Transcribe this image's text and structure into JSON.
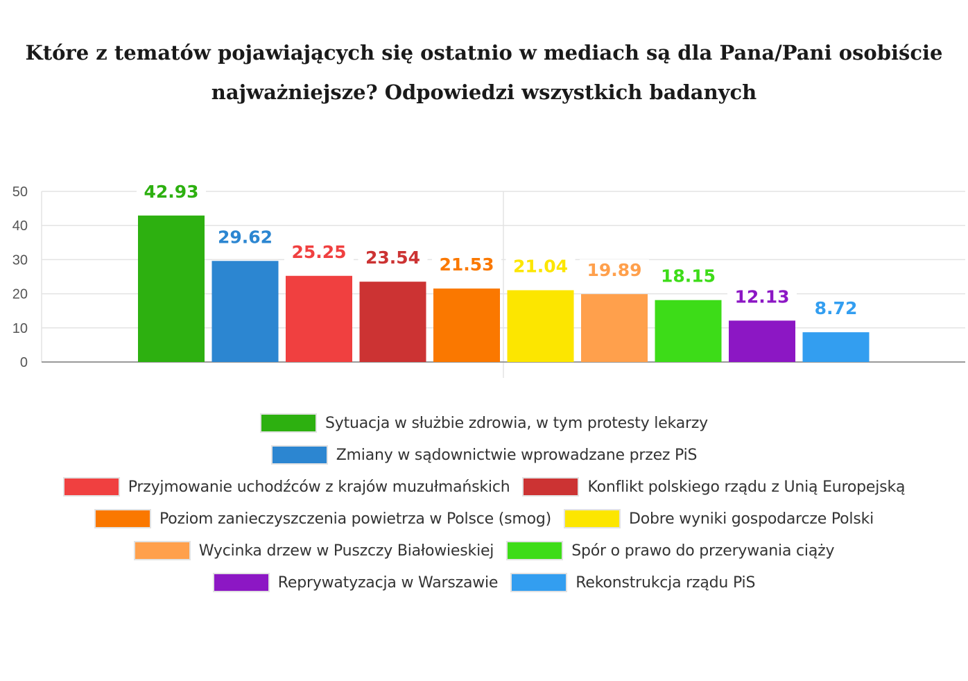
{
  "chart_data": {
    "type": "bar",
    "title_lines": [
      "Które z tematów pojawiających się ostatnio w mediach są dla Pana/Pani osobiście",
      "najważniejsze? Odpowiedzi wszystkich badanych"
    ],
    "ylim": [
      0,
      50
    ],
    "yticks": [
      "0",
      "10",
      "20",
      "30",
      "40",
      "50"
    ],
    "grid": true,
    "legend_position": "bottom",
    "series": [
      {
        "name": "Sytuacja w służbie zdrowia, w tym protesty lekarzy",
        "value": 42.93,
        "label": "42.93",
        "color": "#2db010"
      },
      {
        "name": "Zmiany w sądownictwie wprowadzane przez PiS",
        "value": 29.62,
        "label": "29.62",
        "color": "#2c86d1"
      },
      {
        "name": "Przyjmowanie uchodźców z krajów muzułmańskich",
        "value": 25.25,
        "label": "25.25",
        "color": "#f04040"
      },
      {
        "name": "Konflikt polskiego rządu z Unią Europejską",
        "value": 23.54,
        "label": "23.54",
        "color": "#cc3333"
      },
      {
        "name": "Poziom zanieczyszczenia powietrza w Polsce (smog)",
        "value": 21.53,
        "label": "21.53",
        "color": "#fa7800"
      },
      {
        "name": "Dobre wyniki gospodarcze Polski",
        "value": 21.04,
        "label": "21.04",
        "color": "#fce600"
      },
      {
        "name": "Wycinka drzew w Puszczy Białowieskiej",
        "value": 19.89,
        "label": "19.89",
        "color": "#ffa04c"
      },
      {
        "name": "Spór o prawo do przerywania ciąży",
        "value": 18.15,
        "label": "18.15",
        "color": "#3ddc18"
      },
      {
        "name": "Reprywatyzacja w Warszawie",
        "value": 12.13,
        "label": "12.13",
        "color": "#8c17c4"
      },
      {
        "name": "Rekonstrukcja rządu PiS",
        "value": 8.72,
        "label": "8.72",
        "color": "#339ef0"
      }
    ]
  }
}
